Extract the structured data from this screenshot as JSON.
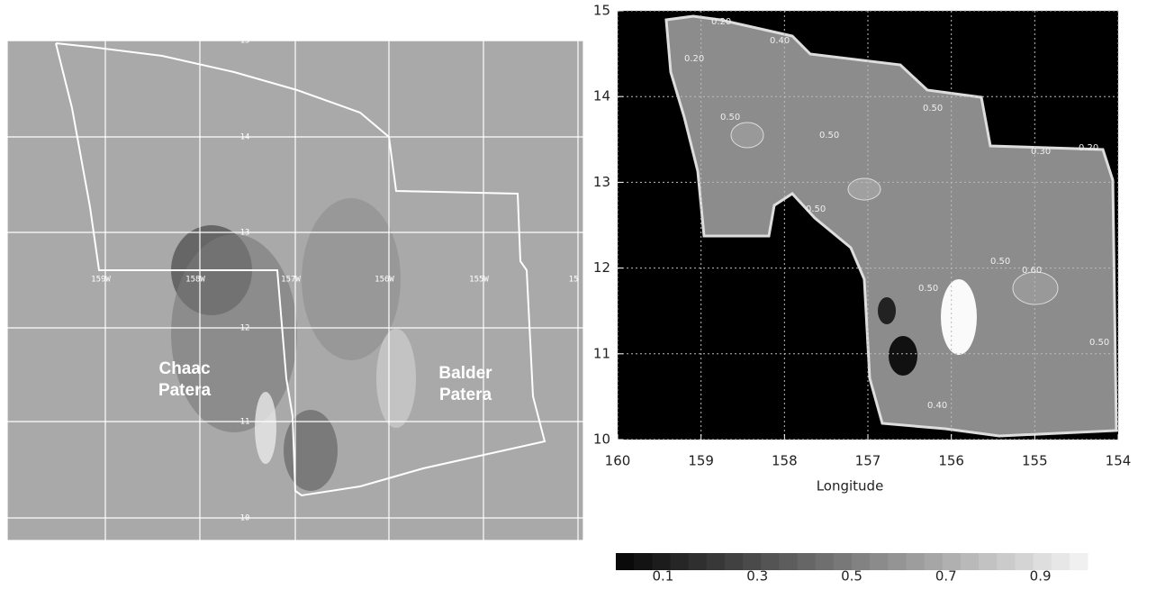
{
  "left_panel": {
    "lat_labels": [
      "15",
      "14",
      "13",
      "12",
      "11",
      "10"
    ],
    "lon_labels": [
      "159W",
      "158W",
      "157W",
      "156W",
      "155W",
      "15"
    ],
    "features": [
      {
        "line1": "Chaac",
        "line2": "Patera"
      },
      {
        "line1": "Balder",
        "line2": "Patera"
      }
    ]
  },
  "right_panel": {
    "xlim": [
      160,
      154
    ],
    "xticks": [
      160,
      159,
      158,
      157,
      156,
      155,
      154
    ],
    "ylim": [
      10,
      15
    ],
    "yticks": [
      10,
      11,
      12,
      13,
      14,
      15
    ],
    "x_label": "Longitude",
    "contour_labels": [
      "0.20",
      "0.40",
      "0.50",
      "0.50",
      "0.50",
      "0.30",
      "0.20",
      "0.50",
      "0.60",
      "0.50",
      "0.50",
      "0.50",
      "0.40",
      "0.20"
    ]
  },
  "colorbar": {
    "range": [
      0,
      1
    ],
    "ticks": [
      0.1,
      0.3,
      0.5,
      0.7,
      0.9
    ]
  }
}
